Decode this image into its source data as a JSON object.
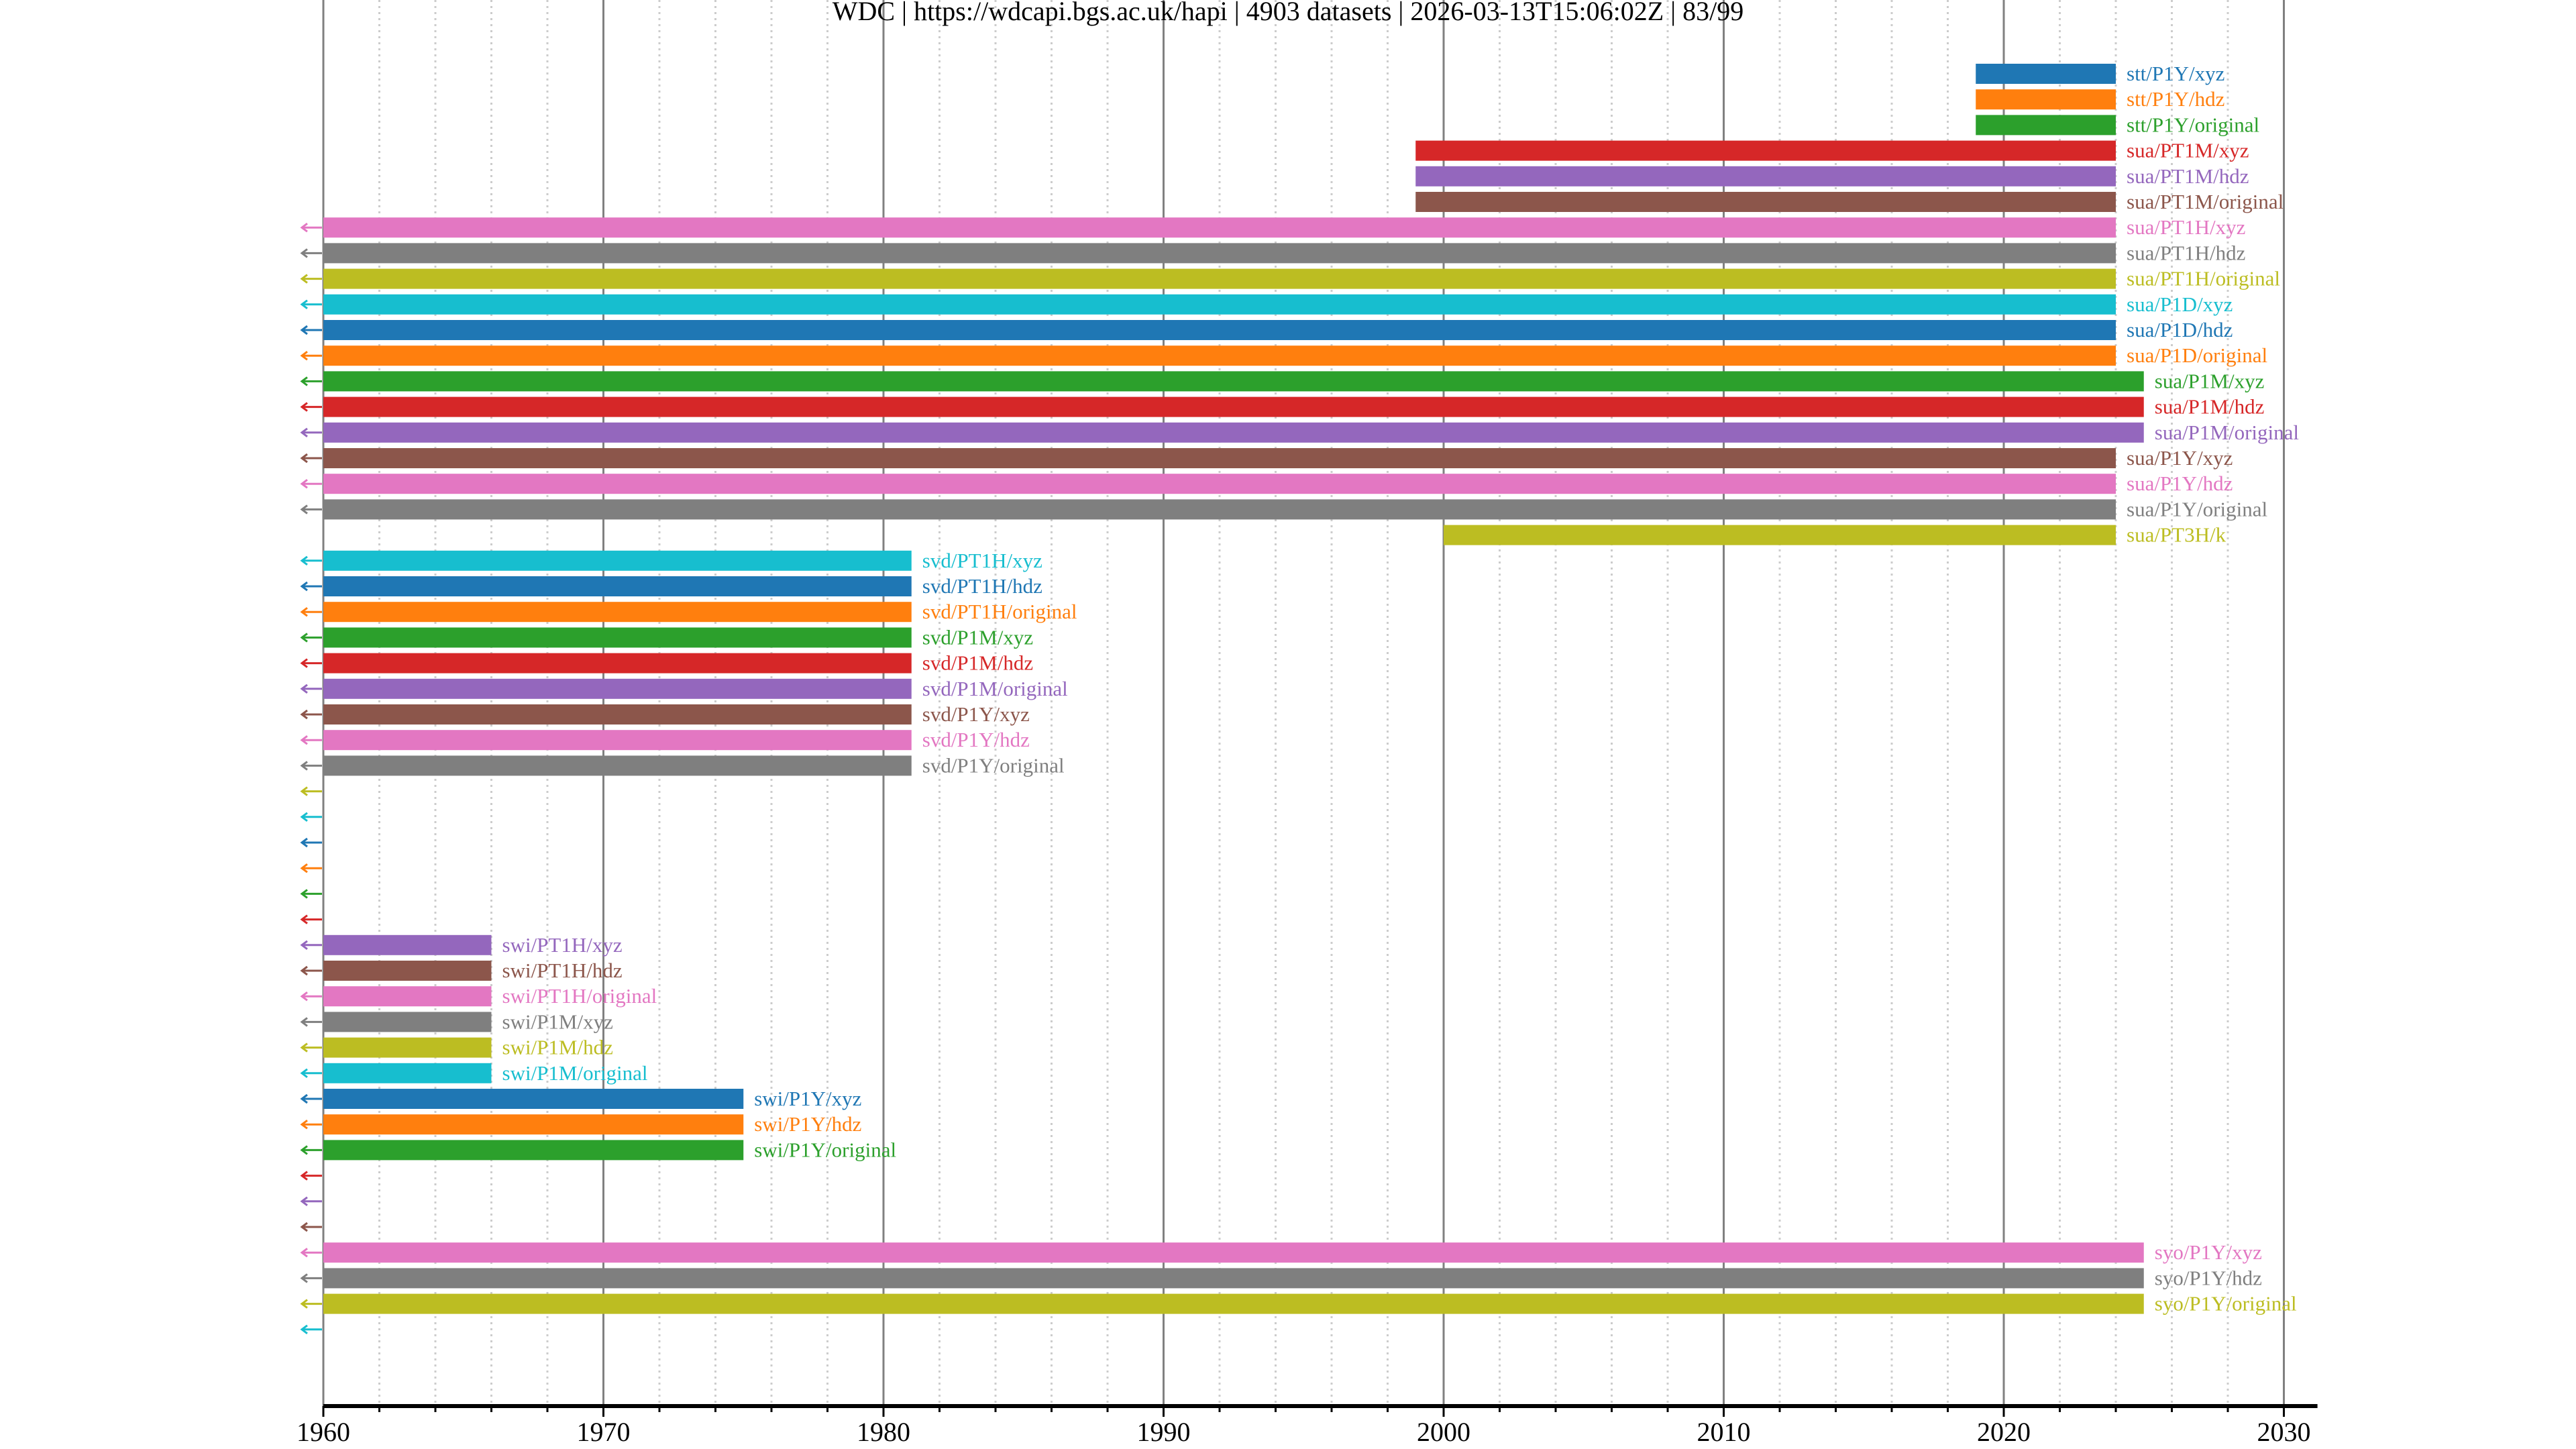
{
  "chart_data": {
    "type": "timeline",
    "title": "WDC | https://wdcapi.bgs.ac.uk/hapi | 4903 datasets | 2026-03-13T15:06:02Z | 83/99",
    "xlabel": "",
    "ylabel": "",
    "xlim": [
      1960,
      2031.2
    ],
    "x_ticks": [
      "1960",
      "1970",
      "1980",
      "1990",
      "2000",
      "2010",
      "2020",
      "2030"
    ],
    "x_tick_values": [
      1960,
      1970,
      1980,
      1990,
      2000,
      2010,
      2020,
      2030
    ],
    "minor_tick_step_years": 2,
    "grid": true,
    "colors": [
      "#1f77b4",
      "#ff7f0e",
      "#2ca02c",
      "#d62728",
      "#9467bd",
      "#8c564b",
      "#e377c2",
      "#7f7f7f",
      "#bcbd22",
      "#17becf"
    ],
    "series": [
      {
        "name": "stt/P1Y/xyz",
        "start": 2019,
        "end": 2024,
        "extends_before_axis": false
      },
      {
        "name": "stt/P1Y/hdz",
        "start": 2019,
        "end": 2024,
        "extends_before_axis": false
      },
      {
        "name": "stt/P1Y/original",
        "start": 2019,
        "end": 2024,
        "extends_before_axis": false
      },
      {
        "name": "sua/PT1M/xyz",
        "start": 1999,
        "end": 2024,
        "extends_before_axis": false
      },
      {
        "name": "sua/PT1M/hdz",
        "start": 1999,
        "end": 2024,
        "extends_before_axis": false
      },
      {
        "name": "sua/PT1M/original",
        "start": 1999,
        "end": 2024,
        "extends_before_axis": false
      },
      {
        "name": "sua/PT1H/xyz",
        "start": 1960,
        "end": 2024,
        "extends_before_axis": true
      },
      {
        "name": "sua/PT1H/hdz",
        "start": 1960,
        "end": 2024,
        "extends_before_axis": true
      },
      {
        "name": "sua/PT1H/original",
        "start": 1960,
        "end": 2024,
        "extends_before_axis": true
      },
      {
        "name": "sua/P1D/xyz",
        "start": 1960,
        "end": 2024,
        "extends_before_axis": true
      },
      {
        "name": "sua/P1D/hdz",
        "start": 1960,
        "end": 2024,
        "extends_before_axis": true
      },
      {
        "name": "sua/P1D/original",
        "start": 1960,
        "end": 2024,
        "extends_before_axis": true
      },
      {
        "name": "sua/P1M/xyz",
        "start": 1960,
        "end": 2025,
        "extends_before_axis": true
      },
      {
        "name": "sua/P1M/hdz",
        "start": 1960,
        "end": 2025,
        "extends_before_axis": true
      },
      {
        "name": "sua/P1M/original",
        "start": 1960,
        "end": 2025,
        "extends_before_axis": true
      },
      {
        "name": "sua/P1Y/xyz",
        "start": 1960,
        "end": 2024,
        "extends_before_axis": true
      },
      {
        "name": "sua/P1Y/hdz",
        "start": 1960,
        "end": 2024,
        "extends_before_axis": true
      },
      {
        "name": "sua/P1Y/original",
        "start": 1960,
        "end": 2024,
        "extends_before_axis": true
      },
      {
        "name": "sua/PT3H/k",
        "start": 2000,
        "end": 2024,
        "extends_before_axis": false
      },
      {
        "name": "svd/PT1H/xyz",
        "start": 1960,
        "end": 1981,
        "extends_before_axis": true
      },
      {
        "name": "svd/PT1H/hdz",
        "start": 1960,
        "end": 1981,
        "extends_before_axis": true
      },
      {
        "name": "svd/PT1H/original",
        "start": 1960,
        "end": 1981,
        "extends_before_axis": true
      },
      {
        "name": "svd/P1M/xyz",
        "start": 1960,
        "end": 1981,
        "extends_before_axis": true
      },
      {
        "name": "svd/P1M/hdz",
        "start": 1960,
        "end": 1981,
        "extends_before_axis": true
      },
      {
        "name": "svd/P1M/original",
        "start": 1960,
        "end": 1981,
        "extends_before_axis": true
      },
      {
        "name": "svd/P1Y/xyz",
        "start": 1960,
        "end": 1981,
        "extends_before_axis": true
      },
      {
        "name": "svd/P1Y/hdz",
        "start": 1960,
        "end": 1981,
        "extends_before_axis": true
      },
      {
        "name": "svd/P1Y/original",
        "start": 1960,
        "end": 1981,
        "extends_before_axis": true
      },
      {
        "name": "",
        "start": null,
        "end": null,
        "extends_before_axis": true
      },
      {
        "name": "",
        "start": null,
        "end": null,
        "extends_before_axis": true
      },
      {
        "name": "",
        "start": null,
        "end": null,
        "extends_before_axis": true
      },
      {
        "name": "",
        "start": null,
        "end": null,
        "extends_before_axis": true
      },
      {
        "name": "",
        "start": null,
        "end": null,
        "extends_before_axis": true
      },
      {
        "name": "",
        "start": null,
        "end": null,
        "extends_before_axis": true
      },
      {
        "name": "swi/PT1H/xyz",
        "start": 1960,
        "end": 1966,
        "extends_before_axis": true
      },
      {
        "name": "swi/PT1H/hdz",
        "start": 1960,
        "end": 1966,
        "extends_before_axis": true
      },
      {
        "name": "swi/PT1H/original",
        "start": 1960,
        "end": 1966,
        "extends_before_axis": true
      },
      {
        "name": "swi/P1M/xyz",
        "start": 1960,
        "end": 1966,
        "extends_before_axis": true
      },
      {
        "name": "swi/P1M/hdz",
        "start": 1960,
        "end": 1966,
        "extends_before_axis": true
      },
      {
        "name": "swi/P1M/original",
        "start": 1960,
        "end": 1966,
        "extends_before_axis": true
      },
      {
        "name": "swi/P1Y/xyz",
        "start": 1960,
        "end": 1975,
        "extends_before_axis": true
      },
      {
        "name": "swi/P1Y/hdz",
        "start": 1960,
        "end": 1975,
        "extends_before_axis": true
      },
      {
        "name": "swi/P1Y/original",
        "start": 1960,
        "end": 1975,
        "extends_before_axis": true
      },
      {
        "name": "",
        "start": null,
        "end": null,
        "extends_before_axis": true
      },
      {
        "name": "",
        "start": null,
        "end": null,
        "extends_before_axis": true
      },
      {
        "name": "",
        "start": null,
        "end": null,
        "extends_before_axis": true
      },
      {
        "name": "syo/P1Y/xyz",
        "start": 1960,
        "end": 2025,
        "extends_before_axis": true
      },
      {
        "name": "syo/P1Y/hdz",
        "start": 1960,
        "end": 2025,
        "extends_before_axis": true
      },
      {
        "name": "syo/P1Y/original",
        "start": 1960,
        "end": 2025,
        "extends_before_axis": true
      },
      {
        "name": "",
        "start": null,
        "end": null,
        "extends_before_axis": true
      }
    ]
  }
}
